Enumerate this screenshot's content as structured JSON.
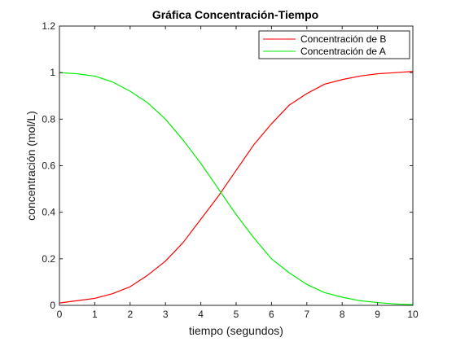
{
  "chart_data": {
    "type": "line",
    "title": "Gráfica Concentración-Tiempo",
    "xlabel": "tiempo (segundos)",
    "ylabel": "concentración (mol/L)",
    "xlim": [
      0,
      10
    ],
    "ylim": [
      0,
      1.2
    ],
    "grid": false,
    "legend_position": "top-right",
    "x_ticks": [
      "0",
      "1",
      "2",
      "3",
      "4",
      "5",
      "6",
      "7",
      "8",
      "9",
      "10"
    ],
    "y_ticks": [
      "0",
      "0.2",
      "0.4",
      "0.6",
      "0.8",
      "1",
      "1.2"
    ],
    "x_tick_values": [
      0,
      1,
      2,
      3,
      4,
      5,
      6,
      7,
      8,
      9,
      10
    ],
    "y_tick_values": [
      0,
      0.2,
      0.4,
      0.6,
      0.8,
      1,
      1.2
    ],
    "x": [
      0,
      0.5,
      1,
      1.5,
      2,
      2.5,
      3,
      3.5,
      4,
      4.5,
      5,
      5.5,
      6,
      6.5,
      7,
      7.5,
      8,
      8.5,
      9,
      9.5,
      10
    ],
    "series": [
      {
        "name": "Concentración de B",
        "color": "#ff0000",
        "values": [
          0.01,
          0.02,
          0.03,
          0.05,
          0.08,
          0.13,
          0.19,
          0.27,
          0.37,
          0.47,
          0.58,
          0.69,
          0.78,
          0.86,
          0.91,
          0.95,
          0.97,
          0.985,
          0.995,
          1.0,
          1.005
        ]
      },
      {
        "name": "Concentración de A",
        "color": "#00ee00",
        "values": [
          1.0,
          0.995,
          0.985,
          0.96,
          0.92,
          0.87,
          0.8,
          0.71,
          0.61,
          0.5,
          0.39,
          0.29,
          0.2,
          0.14,
          0.09,
          0.055,
          0.035,
          0.02,
          0.012,
          0.006,
          0.003
        ]
      }
    ]
  }
}
